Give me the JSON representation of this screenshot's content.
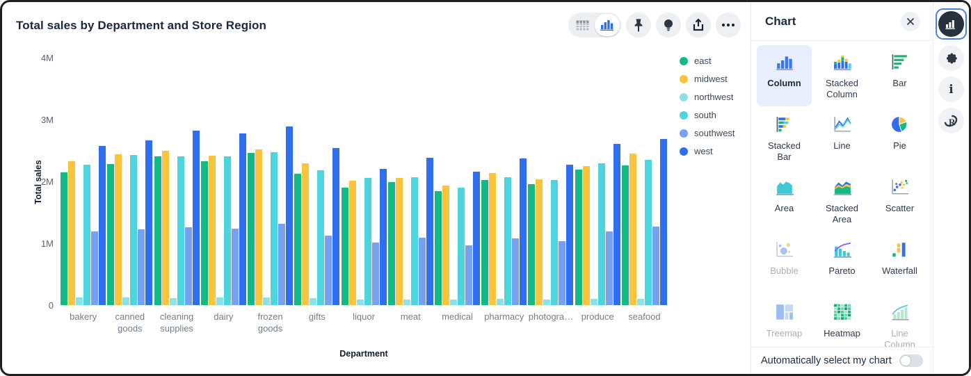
{
  "header": {
    "title": "Total sales by Department and Store Region"
  },
  "toolbar": {
    "view_toggle": [
      "table-view",
      "chart-view"
    ],
    "active_view": "chart-view",
    "buttons": [
      "pin",
      "lightbulb",
      "share",
      "more"
    ]
  },
  "chart_data": {
    "type": "bar",
    "orientation": "vertical",
    "title": "Total sales by Department and Store Region",
    "xlabel": "Department",
    "ylabel": "Total sales",
    "unit": "millions",
    "ylim": [
      0,
      4
    ],
    "yticks": [
      "0",
      "1M",
      "2M",
      "3M",
      "4M"
    ],
    "grid": false,
    "legend_position": "right",
    "categories": [
      "bakery",
      "canned goods",
      "cleaning supplies",
      "dairy",
      "frozen goods",
      "gifts",
      "liquor",
      "meat",
      "medical",
      "pharmacy",
      "photogra…",
      "produce",
      "seafood"
    ],
    "series": [
      {
        "name": "east",
        "color": "#12b886",
        "values": [
          2.15,
          2.28,
          2.4,
          2.33,
          2.46,
          2.12,
          1.9,
          1.99,
          1.84,
          2.02,
          1.96,
          2.19,
          2.26
        ]
      },
      {
        "name": "midwest",
        "color": "#fcc43c",
        "values": [
          2.33,
          2.44,
          2.49,
          2.42,
          2.52,
          2.29,
          2.01,
          2.06,
          1.93,
          2.14,
          2.03,
          2.25,
          2.45
        ]
      },
      {
        "name": "northwest",
        "color": "#8ce0e6",
        "values": [
          0.12,
          0.12,
          0.11,
          0.12,
          0.12,
          0.11,
          0.09,
          0.09,
          0.09,
          0.1,
          0.09,
          0.1,
          0.1
        ]
      },
      {
        "name": "south",
        "color": "#4cd5dc",
        "values": [
          2.27,
          2.43,
          2.4,
          2.4,
          2.47,
          2.18,
          2.06,
          2.07,
          1.9,
          2.07,
          2.02,
          2.29,
          2.35
        ]
      },
      {
        "name": "southwest",
        "color": "#76a1f3",
        "values": [
          1.19,
          1.23,
          1.26,
          1.24,
          1.31,
          1.12,
          1.01,
          1.09,
          0.97,
          1.08,
          1.03,
          1.19,
          1.27
        ]
      },
      {
        "name": "west",
        "color": "#2e6ff2",
        "values": [
          2.57,
          2.66,
          2.82,
          2.77,
          2.89,
          2.54,
          2.2,
          2.38,
          2.16,
          2.37,
          2.27,
          2.61,
          2.69
        ]
      }
    ]
  },
  "panel": {
    "title": "Chart",
    "chart_types": [
      {
        "label": "Column",
        "icon": "column-chart-icon",
        "state": "selected"
      },
      {
        "label": "Stacked Column",
        "icon": "stacked-column-chart-icon",
        "state": "normal"
      },
      {
        "label": "Bar",
        "icon": "bar-chart-icon",
        "state": "normal"
      },
      {
        "label": "Stacked Bar",
        "icon": "stacked-bar-chart-icon",
        "state": "normal"
      },
      {
        "label": "Line",
        "icon": "line-chart-icon",
        "state": "normal"
      },
      {
        "label": "Pie",
        "icon": "pie-chart-icon",
        "state": "normal"
      },
      {
        "label": "Area",
        "icon": "area-chart-icon",
        "state": "normal"
      },
      {
        "label": "Stacked Area",
        "icon": "stacked-area-chart-icon",
        "state": "normal"
      },
      {
        "label": "Scatter",
        "icon": "scatter-chart-icon",
        "state": "normal"
      },
      {
        "label": "Bubble",
        "icon": "bubble-chart-icon",
        "state": "disabled"
      },
      {
        "label": "Pareto",
        "icon": "pareto-chart-icon",
        "state": "normal"
      },
      {
        "label": "Waterfall",
        "icon": "waterfall-chart-icon",
        "state": "normal"
      },
      {
        "label": "Treemap",
        "icon": "treemap-chart-icon",
        "state": "disabled"
      },
      {
        "label": "Heatmap",
        "icon": "heatmap-chart-icon",
        "state": "normal"
      },
      {
        "label": "Line Column",
        "icon": "line-column-chart-icon",
        "state": "disabled"
      }
    ],
    "footer": {
      "label": "Automatically select my chart",
      "toggle_state": "off"
    }
  },
  "rail": {
    "items": [
      {
        "name": "chart",
        "selected": true
      },
      {
        "name": "settings",
        "selected": false
      },
      {
        "name": "info",
        "selected": false
      },
      {
        "name": "r-language",
        "selected": false
      }
    ]
  }
}
